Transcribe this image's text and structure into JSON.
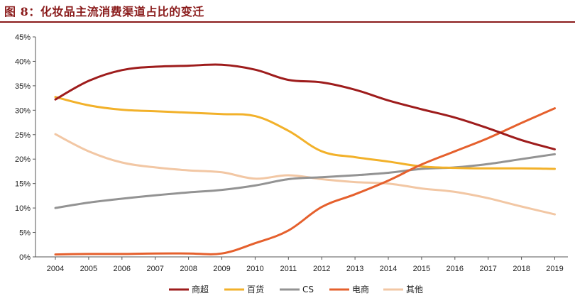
{
  "title": "图 8：化妆品主流消费渠道占比的变迁",
  "chart_data": {
    "type": "line",
    "title": "图 8：化妆品主流消费渠道占比的变迁",
    "xlabel": "",
    "ylabel": "",
    "x": [
      "2004",
      "2005",
      "2006",
      "2007",
      "2008",
      "2009",
      "2010",
      "2011",
      "2012",
      "2013",
      "2014",
      "2015",
      "2016",
      "2017",
      "2018",
      "2019"
    ],
    "y_ticks": [
      "0%",
      "5%",
      "10%",
      "15%",
      "20%",
      "25%",
      "30%",
      "35%",
      "40%",
      "45%"
    ],
    "ylim": [
      0,
      45
    ],
    "grid": false,
    "legend_position": "bottom",
    "series": [
      {
        "name": "商超",
        "color": "#9e1c1c",
        "values": [
          32.2,
          36.0,
          38.2,
          38.9,
          39.1,
          39.3,
          38.3,
          36.2,
          35.7,
          34.2,
          32.0,
          30.2,
          28.5,
          26.3,
          23.9,
          22.0
        ]
      },
      {
        "name": "百货",
        "color": "#f2b12a",
        "values": [
          32.7,
          31.0,
          30.1,
          29.8,
          29.5,
          29.2,
          28.8,
          25.8,
          21.6,
          20.4,
          19.5,
          18.5,
          18.2,
          18.1,
          18.1,
          18.0
        ]
      },
      {
        "name": "CS",
        "color": "#939393",
        "values": [
          10.0,
          11.1,
          11.9,
          12.6,
          13.2,
          13.7,
          14.6,
          15.9,
          16.3,
          16.7,
          17.2,
          18.0,
          18.3,
          19.0,
          20.0,
          21.0
        ]
      },
      {
        "name": "电商",
        "color": "#e5602d",
        "values": [
          0.5,
          0.6,
          0.6,
          0.7,
          0.7,
          0.7,
          2.8,
          5.4,
          10.2,
          12.8,
          15.6,
          18.9,
          21.6,
          24.3,
          27.4,
          30.4
        ]
      },
      {
        "name": "其他",
        "color": "#f2c7a4",
        "values": [
          25.1,
          21.6,
          19.3,
          18.3,
          17.7,
          17.3,
          16.0,
          16.7,
          15.9,
          15.3,
          15.0,
          14.0,
          13.3,
          12.0,
          10.3,
          8.7
        ]
      }
    ]
  }
}
